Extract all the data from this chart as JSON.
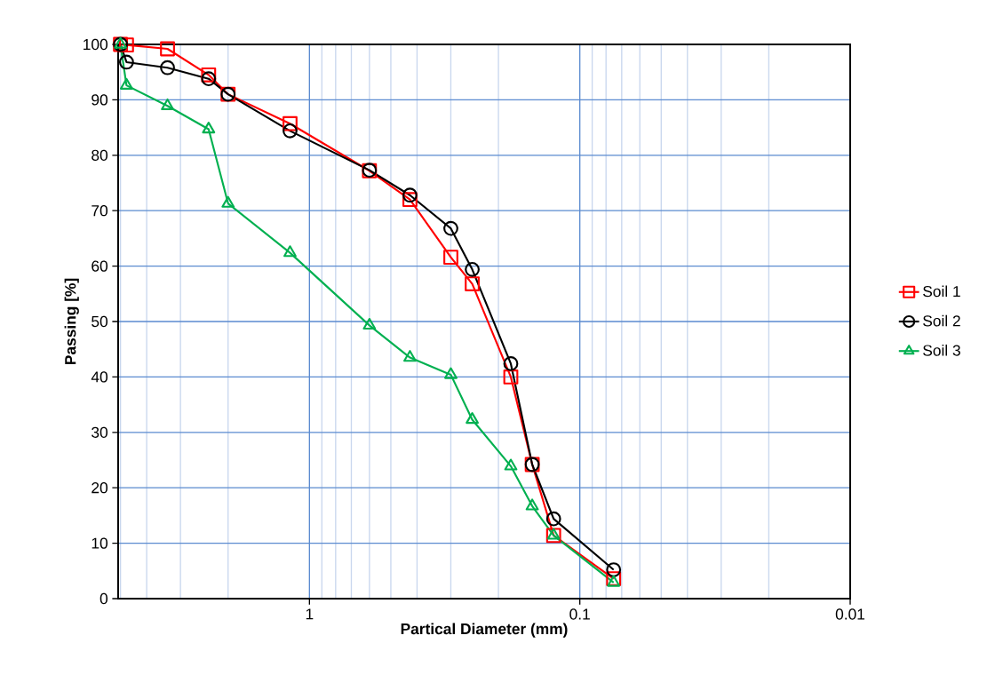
{
  "chart_data": {
    "type": "line",
    "xlabel": "Partical Diameter (mm)",
    "ylabel": "Passing [%]",
    "x": [
      5,
      4.75,
      3.35,
      2.36,
      2,
      1.18,
      0.6,
      0.425,
      0.3,
      0.25,
      0.18,
      0.15,
      0.125,
      0.075
    ],
    "series": [
      {
        "name": "Soil 1",
        "color": "#ff0000",
        "marker": "square",
        "values": [
          100,
          99.9,
          99.2,
          94.5,
          91,
          85.7,
          77.2,
          72,
          61.6,
          56.8,
          40,
          24.2,
          11.4,
          3.6
        ]
      },
      {
        "name": "Soil 2",
        "color": "#000000",
        "marker": "circle",
        "values": [
          100,
          96.8,
          95.8,
          93.8,
          91,
          84.4,
          77.3,
          72.8,
          66.8,
          59.4,
          42.4,
          24.2,
          14.4,
          5.2
        ]
      },
      {
        "name": "Soil 3",
        "color": "#00b050",
        "marker": "triangle",
        "values": [
          100,
          92.6,
          88.9,
          84.7,
          71.3,
          62.4,
          49.3,
          43.5,
          40.4,
          32.3,
          23.9,
          16.7,
          11.4,
          2.9
        ]
      }
    ],
    "log": "x",
    "xlim": [
      5.1,
      0.01
    ],
    "xticks": [
      1,
      0.1,
      0.01
    ],
    "ylim": [
      0,
      100
    ],
    "yticks": [
      0,
      10,
      20,
      30,
      40,
      50,
      60,
      70,
      80,
      90,
      100
    ],
    "grid": true,
    "legend": "right",
    "line_style": "solid"
  }
}
